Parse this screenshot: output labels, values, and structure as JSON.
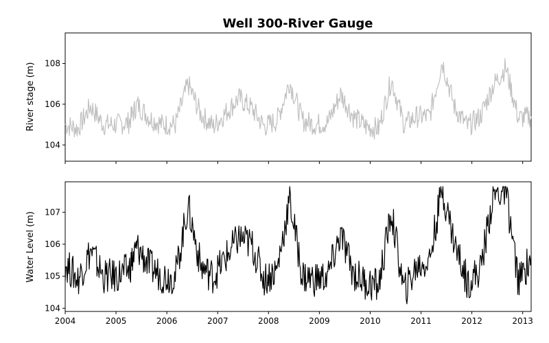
{
  "chart_data": [
    {
      "type": "line",
      "title": "Well 300-River Gauge",
      "xlabel": "",
      "ylabel": "River stage (m)",
      "xlim": [
        "2004-01-01",
        "2013-03-01"
      ],
      "ylim": [
        103.2,
        109.5
      ],
      "yticks": [
        "104",
        "106",
        "108"
      ],
      "ytick_values": [
        104,
        106,
        108
      ],
      "x_tick_labels_shown": false,
      "grid": false,
      "color": "#c0c0c0",
      "series": [
        {
          "x": [
            "2004-01",
            "2004-04",
            "2004-07",
            "2004-10",
            "2005-01",
            "2005-04",
            "2005-06",
            "2005-09",
            "2005-12",
            "2006-03",
            "2006-06",
            "2006-09",
            "2006-12",
            "2007-03",
            "2007-06",
            "2007-09",
            "2007-12",
            "2008-03",
            "2008-06",
            "2008-09",
            "2008-12",
            "2009-03",
            "2009-06",
            "2009-09",
            "2009-12",
            "2010-03",
            "2010-06",
            "2010-09",
            "2010-12",
            "2011-03",
            "2011-06",
            "2011-09",
            "2011-12",
            "2012-03",
            "2012-06",
            "2012-09",
            "2012-12",
            "2013-03"
          ],
          "values": [
            105.0,
            104.8,
            105.9,
            105.0,
            105.0,
            105.1,
            106.0,
            105.3,
            105.0,
            105.0,
            107.0,
            105.5,
            104.9,
            105.6,
            106.3,
            105.8,
            104.9,
            105.2,
            107.1,
            105.2,
            105.0,
            105.1,
            106.5,
            105.4,
            104.9,
            104.8,
            107.2,
            105.0,
            105.4,
            105.4,
            108.1,
            105.8,
            104.9,
            105.4,
            106.9,
            107.8,
            105.3,
            105.4
          ]
        }
      ]
    },
    {
      "type": "line",
      "title": "",
      "xlabel": "",
      "ylabel": "Water Level (m)",
      "xlim": [
        "2004-01-01",
        "2013-03-01"
      ],
      "ylim": [
        103.9,
        107.95
      ],
      "yticks": [
        "104",
        "105",
        "106",
        "107"
      ],
      "ytick_values": [
        104,
        105,
        106,
        107
      ],
      "xticks": [
        "2004",
        "2005",
        "2006",
        "2007",
        "2008",
        "2009",
        "2010",
        "2011",
        "2012",
        "2013"
      ],
      "grid": false,
      "color": "#000000",
      "series": [
        {
          "x": [
            "2004-01",
            "2004-04",
            "2004-07",
            "2004-10",
            "2005-01",
            "2005-04",
            "2005-06",
            "2005-09",
            "2005-12",
            "2006-03",
            "2006-06",
            "2006-09",
            "2006-12",
            "2007-03",
            "2007-06",
            "2007-09",
            "2007-12",
            "2008-03",
            "2008-06",
            "2008-09",
            "2008-12",
            "2009-03",
            "2009-06",
            "2009-09",
            "2009-12",
            "2010-03",
            "2010-06",
            "2010-09",
            "2010-12",
            "2011-03",
            "2011-06",
            "2011-09",
            "2011-12",
            "2012-03",
            "2012-06",
            "2012-09",
            "2012-12",
            "2013-03"
          ],
          "values": [
            105.4,
            104.9,
            105.8,
            105.0,
            105.0,
            105.2,
            105.9,
            105.3,
            105.0,
            105.0,
            107.2,
            105.3,
            105.0,
            105.6,
            106.2,
            106.0,
            104.9,
            105.2,
            107.4,
            105.0,
            104.9,
            105.0,
            106.3,
            105.1,
            104.8,
            104.7,
            107.0,
            104.5,
            105.3,
            105.5,
            107.75,
            106.0,
            104.8,
            105.2,
            107.5,
            107.7,
            104.8,
            105.6
          ]
        }
      ]
    }
  ]
}
